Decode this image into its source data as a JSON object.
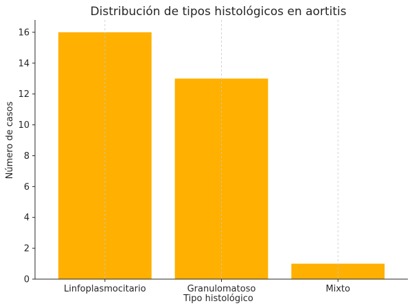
{
  "chart_data": {
    "type": "bar",
    "title": "Distribución de tipos histológicos en aortitis",
    "xlabel": "Tipo histológico",
    "ylabel": "Número de casos",
    "categories": [
      "Linfoplasmocitario",
      "Granulomatoso",
      "Mixto"
    ],
    "values": [
      16,
      13,
      1
    ],
    "ylim": [
      0,
      16.8
    ],
    "yticks": [
      0,
      2,
      4,
      6,
      8,
      10,
      12,
      14,
      16
    ],
    "bar_color": "#FFB000",
    "grid": "x-dashed",
    "legend": "none"
  }
}
